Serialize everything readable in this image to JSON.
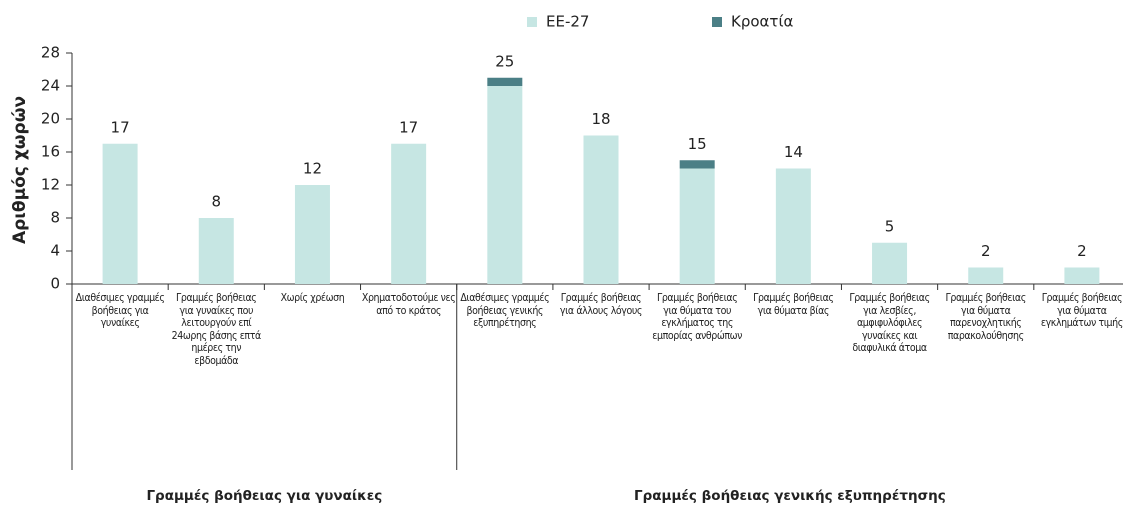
{
  "chart_data": {
    "type": "bar",
    "stacked": true,
    "y_label": "Αριθμός χωρών",
    "categories": [
      "Διαθέσιμες γραμμές βοήθειας για γυναίκες",
      "Γραμμές βοήθειας για γυναίκες που λειτουργούν επί 24ωρης βάσης επτά ημέρες την εβδομάδα",
      "Χωρίς χρέωση",
      "Χρηματοδοτούμε νες από το κράτος",
      "Διαθέσιμες γραμμές βοήθειας γενικής εξυπηρέτησης",
      "Γραμμές βοήθειας για άλλους λόγους",
      "Γραμμές βοήθειας για θύματα του εγκλήματος της εμπορίας ανθρώπων",
      "Γραμμές βοήθειας για θύματα βίας",
      "Γραμμές βοήθειας για λεσβίες, αμφιφυλόφιλες γυναίκες και διαφυλικά άτομα",
      "Γραμμές βοήθειας για θύματα παρενοχλητικής παρακολούθησης",
      "Γραμμές βοήθειας για θύματα εγκλημάτων τιμής"
    ],
    "groups": [
      {
        "label": "Γραμμές βοήθειας για γυναίκες",
        "count": 4
      },
      {
        "label": "Γραμμές βοήθειας γενικής εξυπηρέτησης",
        "count": 7
      }
    ],
    "series": [
      {
        "name": "ΕΕ-27",
        "color": "#c6e6e3",
        "values": [
          17,
          8,
          12,
          17,
          24,
          18,
          14,
          14,
          5,
          2,
          2
        ]
      },
      {
        "name": "Κροατία",
        "color": "#4b7f86",
        "values": [
          0,
          0,
          0,
          0,
          1,
          0,
          1,
          0,
          0,
          0,
          0
        ]
      }
    ],
    "totals": [
      17,
      8,
      12,
      17,
      25,
      18,
      15,
      14,
      5,
      2,
      2
    ],
    "ylim": [
      0,
      28
    ],
    "yticks": [
      0,
      4,
      8,
      12,
      16,
      20,
      24,
      28
    ],
    "legend": "top"
  }
}
